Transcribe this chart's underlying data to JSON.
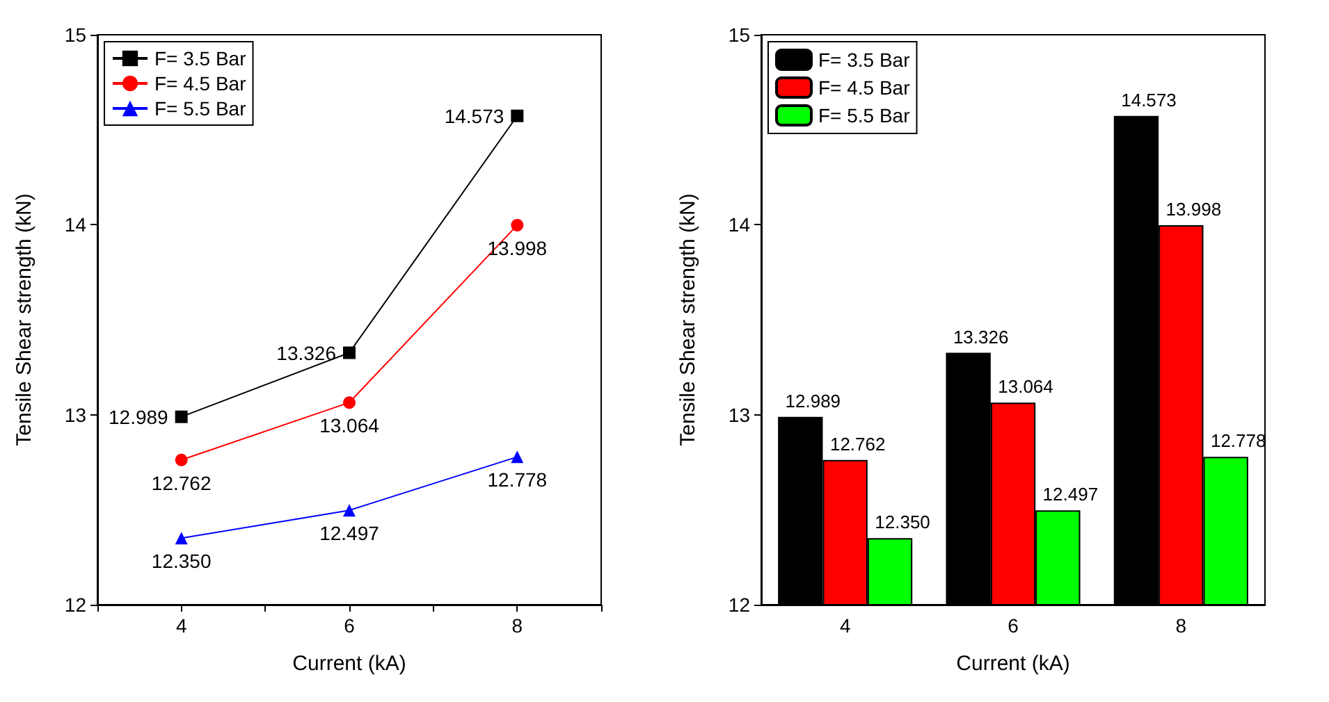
{
  "chart_data": [
    {
      "type": "line",
      "xlabel": "Current (kA)",
      "ylabel": "Tensile Shear strength (kN)",
      "x": [
        4,
        6,
        8
      ],
      "series": [
        {
          "name": "F= 3.5 Bar",
          "color": "#000000",
          "marker": "square",
          "values": [
            12.989,
            13.326,
            14.573
          ],
          "value_labels": [
            "12.989",
            "13.326",
            "14.573"
          ]
        },
        {
          "name": "F= 4.5 Bar",
          "color": "#ff0000",
          "marker": "circle",
          "values": [
            12.762,
            13.064,
            13.998
          ],
          "value_labels": [
            "12.762",
            "13.064",
            "13.998"
          ]
        },
        {
          "name": "F= 5.5 Bar",
          "color": "#0000ff",
          "marker": "triangle",
          "values": [
            12.35,
            12.497,
            12.778
          ],
          "value_labels": [
            "12.350",
            "12.497",
            "12.778"
          ]
        }
      ],
      "xlim": [
        3,
        9
      ],
      "xticks": [
        {
          "value": 3,
          "label": null
        },
        4,
        {
          "value": 5,
          "label": null
        },
        6,
        {
          "value": 7,
          "label": null
        },
        8,
        {
          "value": 9,
          "label": null
        }
      ],
      "ylim": [
        12,
        15
      ],
      "yticks": [
        12,
        13,
        14,
        15
      ],
      "legend": "top left",
      "grid": false
    },
    {
      "type": "bar",
      "xlabel": "Current (kA)",
      "ylabel": "Tensile Shear strength (kN)",
      "categories": [
        "4",
        "6",
        "8"
      ],
      "series": [
        {
          "name": "F= 3.5 Bar",
          "color": "#000000",
          "values": [
            12.989,
            13.326,
            14.573
          ],
          "value_labels": [
            "12.989",
            "13.326",
            "14.573"
          ]
        },
        {
          "name": "F= 4.5 Bar",
          "color": "#ff0000",
          "values": [
            12.762,
            13.064,
            13.998
          ],
          "value_labels": [
            "12.762",
            "13.064",
            "13.998"
          ]
        },
        {
          "name": "F= 5.5 Bar",
          "color": "#00ff00",
          "values": [
            12.35,
            12.497,
            12.778
          ],
          "value_labels": [
            "12.350",
            "12.497",
            "12.778"
          ]
        }
      ],
      "ylim": [
        12,
        15
      ],
      "yticks": [
        12,
        13,
        14,
        15
      ],
      "legend": "top left",
      "grid": false
    }
  ]
}
